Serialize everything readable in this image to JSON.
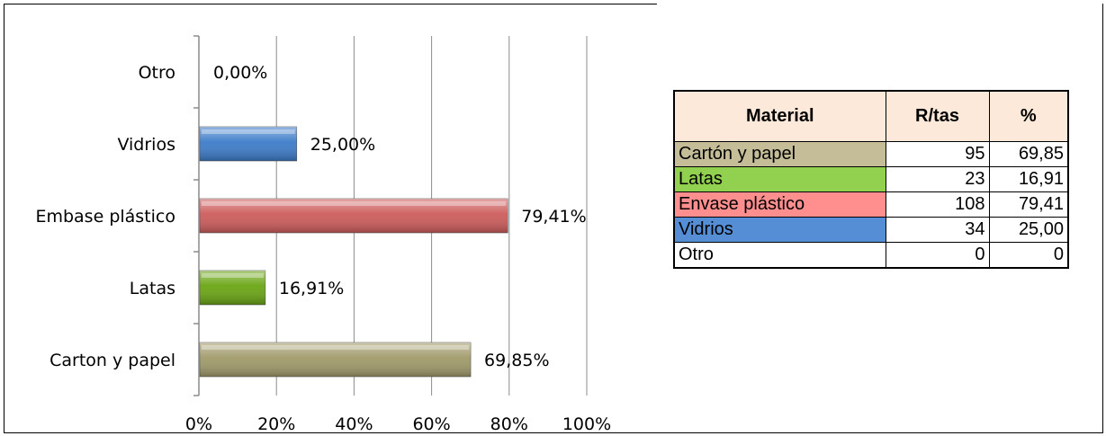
{
  "chart_data": {
    "type": "bar",
    "orientation": "horizontal",
    "categories": [
      "Carton y papel",
      "Latas",
      "Embase plástico",
      "Vidrios",
      "Otro"
    ],
    "values": [
      69.85,
      16.91,
      79.41,
      25.0,
      0.0
    ],
    "data_labels": [
      "69,85%",
      "16,91%",
      "79,41%",
      "25,00%",
      "0,00%"
    ],
    "colors": [
      "#a09a6a",
      "#6aa514",
      "#cd5c5c",
      "#3d7cc9",
      "#a0a0a0"
    ],
    "xlim": [
      0,
      100
    ],
    "xticks": [
      "0%",
      "20%",
      "40%",
      "60%",
      "80%",
      "100%"
    ],
    "grid": true,
    "title": "",
    "xlabel": "",
    "ylabel": ""
  },
  "table": {
    "headers": [
      "Material",
      "R/tas",
      "%"
    ],
    "rows": [
      {
        "material": "Cartón y papel",
        "rtas": "95",
        "pct": "69,85",
        "color": "#c4bd97"
      },
      {
        "material": "Latas",
        "rtas": "23",
        "pct": "16,91",
        "color": "#92d050"
      },
      {
        "material": "Envase plástico",
        "rtas": "108",
        "pct": "79,41",
        "color": "#ff8f8f"
      },
      {
        "material": "Vidrios",
        "rtas": "34",
        "pct": "25,00",
        "color": "#558ed5"
      },
      {
        "material": "Otro",
        "rtas": "0",
        "pct": "0",
        "color": "#ffffff"
      }
    ]
  }
}
